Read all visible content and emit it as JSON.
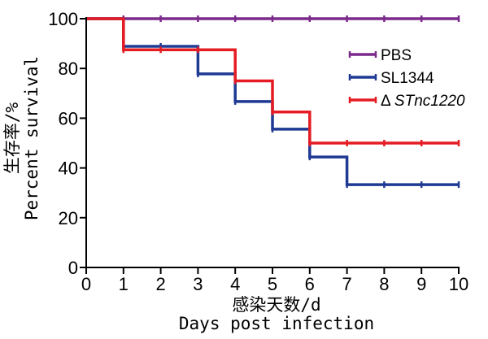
{
  "chart_data": {
    "type": "line",
    "title": "",
    "xlabel_cn": "感染天数/d",
    "xlabel_en": "Days post infection",
    "ylabel_cn": "生存率/%",
    "ylabel_en": "Percent survival",
    "xlim": [
      0,
      10
    ],
    "ylim": [
      0,
      100
    ],
    "x_ticks": [
      0,
      1,
      2,
      3,
      4,
      5,
      6,
      7,
      8,
      9,
      10
    ],
    "y_ticks": [
      0,
      20,
      40,
      60,
      80,
      100
    ],
    "grid": false,
    "legend_position": "top-right",
    "step": true,
    "series": [
      {
        "name": "PBS",
        "color": "#7b2a8c",
        "points": [
          [
            0,
            100
          ],
          [
            10,
            100
          ]
        ]
      },
      {
        "name": "SL1344",
        "color": "#1f3a93",
        "points": [
          [
            0,
            100
          ],
          [
            1,
            88.9
          ],
          [
            3,
            77.8
          ],
          [
            4,
            66.7
          ],
          [
            5,
            55.6
          ],
          [
            6,
            44.4
          ],
          [
            7,
            33.3
          ],
          [
            10,
            33.3
          ]
        ]
      },
      {
        "name": "Δ STnc1220",
        "color": "#e51c23",
        "points": [
          [
            0,
            100
          ],
          [
            1,
            87.5
          ],
          [
            4,
            75
          ],
          [
            5,
            62.5
          ],
          [
            6,
            50
          ],
          [
            10,
            50
          ]
        ]
      }
    ]
  }
}
